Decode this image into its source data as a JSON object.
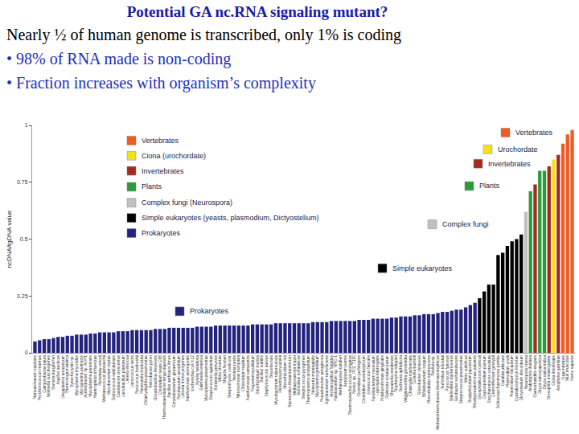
{
  "slide": {
    "title": "Potential GA nc.RNA signaling mutant?",
    "lines": [
      "Nearly ½ of human genome is transcribed, only 1% is coding",
      "• 98% of RNA made is non-coding",
      "• Fraction increases with organism’s complexity"
    ]
  },
  "chart_data": {
    "type": "bar",
    "y_label": "ncDNA/tgDNA value",
    "ylim": [
      0,
      1
    ],
    "yticks": [
      0,
      0.25,
      0.5,
      0.75,
      1
    ],
    "grid": false,
    "categories": [
      "Nanoarchaeum equitans",
      "Prochlorococcus marinus",
      "Campylobacter jejuni",
      "Wolinella succinogenes",
      "Borrelia burgdorferi",
      "Aquifex aeolicus",
      "Ureaplasma urealyticum",
      "Thermotoga maritima",
      "Synechocystis sp.",
      "Mycoplasma mycoides",
      "Mycoplasma pulmonis",
      "Acinetobacter sp. ADP1",
      "Mycoplasma penetrans",
      "Haemophilus influenzae",
      "Rickettsia conorii",
      "Methanococcus jannaschii",
      "Mycobacterium leprae",
      "Deinococcus radiodurans",
      "Caulobacter crescentus",
      "Lactobacillus plantarum",
      "Listeria innocua",
      "Lactococcus lactis",
      "Pyrococcus horikoshii",
      "Pasteurella multocida",
      "Chlamydophila pneumoniae",
      "Helicobacter pylori",
      "Oceanobacillus iheyensis",
      "Clostridium tetani E88",
      "Thermoanaerobacter tengcongensis",
      "Bacillus anthracis Ames",
      "Corynebacterium glutamicum",
      "Pyrobaculum aerophilum",
      "Listeria monocytogenes",
      "Xanthomonas axonopodis",
      "Escherichia coli K12",
      "Xylella fastidiosa",
      "Salmonella enterica",
      "Mycoplasma pneumoniae",
      "Streptococcus agalactiae",
      "Bordetella pertussis",
      "Vibrio cholerae",
      "Shigella flexneri",
      "Streptomyces coelicolor",
      "Yersinia pestis",
      "Nitrosomonas europaea",
      "Chlorobium tepidum",
      "Xanthomonas campestris",
      "Treponema pallidum",
      "Sinorhizobium meliloti",
      "Bacillus subtilis",
      "Staphylococcus aureus",
      "Brucella suis",
      "Mycobacterium tuberculosis",
      "Rickettsia prowazekii",
      "Mesorhizobium loti",
      "Bacteroides thetaiotaomicron",
      "Methanosarcina mazei",
      "Sulfolobus solfataricus",
      "Streptococcus pyogenes",
      "Thermoplasma acidophilum",
      "Neisseria meningitidis",
      "Mycoplasma genitalium",
      "Pseudomonas aeruginosa",
      "Agrobacterium tumefaciens",
      "Archaeoglobus fulgidus",
      "Halobacterium sp. NRC-1",
      "Methanopyrus kandleri",
      "Aeropyrum pernix",
      "Thermosynechococcus elongatus",
      "Nostoc sp. PCC 7120",
      "Clostridium perfringens",
      "Clostridium acetobutylicum",
      "Enterococcus faecalis",
      "Fusobacterium nucleatum",
      "Leptospira interrogans",
      "Porphyromonas gingivalis",
      "Ralstonia solanacearum",
      "Shewanella oneidensis",
      "Tropheryma whipplei",
      "Buchnera aphidicola",
      "Wigglesworthia glossinidia",
      "Chlamydia trachomatis",
      "Coxiella burnetii",
      "Gloeobacter violaceus",
      "Bifidobacterium longum",
      "Photorhabdus luminescens",
      "Pirellula sp.",
      "Methanothermobacter thermautotrophicus",
      "Sulfolobus tokodaii",
      "Pyrococcus furiosus",
      "Bdellovibrio bacteriovorus",
      "Geobacter sulfurreducens",
      "Streptococcus pneumoniae",
      "Vibrio vulnificus",
      "Bradyrhizobium japonicum",
      "Rhodopseudomonas palustris",
      "Encephalitozoon cuniculi",
      "Cryptosporidium parvum",
      "Saccharomyces cerevisiae",
      "Eremothecium gossypii",
      "Schizosaccharomyces pombe",
      "Candida albicans",
      "Plasmodium yoelii",
      "Plasmodium falciparum",
      "Cyanidioschyzon merolae",
      "Dictyostelium discoideum",
      "Neurospora crassa",
      "Arabidopsis thaliana",
      "Caenorhabditis elegans",
      "Oryza sativa japonica",
      "Oryza sativa indica",
      "Drosophila melanogaster",
      "Ciona intestinalis",
      "Anopheles gambiae",
      "Fugu rubripes",
      "Mus musculus",
      "Homo sapiens"
    ],
    "values": [
      0.05,
      0.055,
      0.06,
      0.06,
      0.065,
      0.07,
      0.07,
      0.075,
      0.075,
      0.08,
      0.08,
      0.08,
      0.085,
      0.085,
      0.09,
      0.09,
      0.09,
      0.09,
      0.095,
      0.095,
      0.095,
      0.1,
      0.1,
      0.1,
      0.1,
      0.1,
      0.105,
      0.105,
      0.105,
      0.11,
      0.11,
      0.11,
      0.11,
      0.11,
      0.11,
      0.115,
      0.115,
      0.115,
      0.115,
      0.12,
      0.12,
      0.12,
      0.12,
      0.12,
      0.12,
      0.12,
      0.12,
      0.125,
      0.125,
      0.125,
      0.125,
      0.125,
      0.13,
      0.13,
      0.13,
      0.13,
      0.13,
      0.13,
      0.13,
      0.13,
      0.135,
      0.135,
      0.135,
      0.135,
      0.14,
      0.14,
      0.14,
      0.14,
      0.14,
      0.14,
      0.145,
      0.145,
      0.145,
      0.15,
      0.15,
      0.15,
      0.15,
      0.155,
      0.155,
      0.16,
      0.16,
      0.16,
      0.165,
      0.165,
      0.17,
      0.17,
      0.17,
      0.175,
      0.18,
      0.18,
      0.185,
      0.19,
      0.19,
      0.2,
      0.21,
      0.22,
      0.24,
      0.27,
      0.3,
      0.3,
      0.43,
      0.44,
      0.47,
      0.49,
      0.5,
      0.52,
      0.62,
      0.71,
      0.74,
      0.8,
      0.8,
      0.82,
      0.85,
      0.87,
      0.92,
      0.96,
      0.98
    ],
    "colors": [
      "#23237d",
      "#23237d",
      "#23237d",
      "#23237d",
      "#23237d",
      "#23237d",
      "#23237d",
      "#23237d",
      "#23237d",
      "#23237d",
      "#23237d",
      "#23237d",
      "#23237d",
      "#23237d",
      "#23237d",
      "#23237d",
      "#23237d",
      "#23237d",
      "#23237d",
      "#23237d",
      "#23237d",
      "#23237d",
      "#23237d",
      "#23237d",
      "#23237d",
      "#23237d",
      "#23237d",
      "#23237d",
      "#23237d",
      "#23237d",
      "#23237d",
      "#23237d",
      "#23237d",
      "#23237d",
      "#23237d",
      "#23237d",
      "#23237d",
      "#23237d",
      "#23237d",
      "#23237d",
      "#23237d",
      "#23237d",
      "#23237d",
      "#23237d",
      "#23237d",
      "#23237d",
      "#23237d",
      "#23237d",
      "#23237d",
      "#23237d",
      "#23237d",
      "#23237d",
      "#23237d",
      "#23237d",
      "#23237d",
      "#23237d",
      "#23237d",
      "#23237d",
      "#23237d",
      "#23237d",
      "#23237d",
      "#23237d",
      "#23237d",
      "#23237d",
      "#23237d",
      "#23237d",
      "#23237d",
      "#23237d",
      "#23237d",
      "#23237d",
      "#23237d",
      "#23237d",
      "#23237d",
      "#23237d",
      "#23237d",
      "#23237d",
      "#23237d",
      "#23237d",
      "#23237d",
      "#23237d",
      "#23237d",
      "#23237d",
      "#23237d",
      "#23237d",
      "#23237d",
      "#23237d",
      "#23237d",
      "#23237d",
      "#23237d",
      "#23237d",
      "#23237d",
      "#23237d",
      "#23237d",
      "#23237d",
      "#23237d",
      "#23237d",
      "#000000",
      "#000000",
      "#000000",
      "#000000",
      "#000000",
      "#000000",
      "#000000",
      "#000000",
      "#000000",
      "#000000",
      "#c0c0c0",
      "#2e9b3a",
      "#a52a1e",
      "#2e9b3a",
      "#2e9b3a",
      "#a52a1e",
      "#f2e21b",
      "#a52a1e",
      "#f05a23",
      "#f05a23",
      "#f05a23"
    ],
    "annotations": [
      {
        "text": "Vertebrates",
        "color": "#f05a23"
      },
      {
        "text": "Ciona (urochordate)",
        "color": "#f2e21b"
      },
      {
        "text": "Invertebrates",
        "color": "#a52a1e"
      },
      {
        "text": "Plants",
        "color": "#2e9b3a"
      },
      {
        "text": "Complex fungi (Neurospora)",
        "color": "#c0c0c0"
      },
      {
        "text": "Simple eukaryotes (yeasts, plasmodium, Dictyostelium)",
        "color": "#000000"
      },
      {
        "text": "Prokaryotes",
        "color": "#23237d"
      },
      {
        "text": "Vertebrates",
        "color": "#f05a23"
      },
      {
        "text": "Urochordate",
        "color": "#f2e21b"
      },
      {
        "text": "Invertebrates",
        "color": "#a52a1e"
      },
      {
        "text": "Plants",
        "color": "#2e9b3a"
      },
      {
        "text": "Complex fungi",
        "color": "#c0c0c0"
      },
      {
        "text": "Simple eukaryotes",
        "color": "#000000"
      },
      {
        "text": "Prokaryotes",
        "color": "#23237d"
      }
    ]
  }
}
